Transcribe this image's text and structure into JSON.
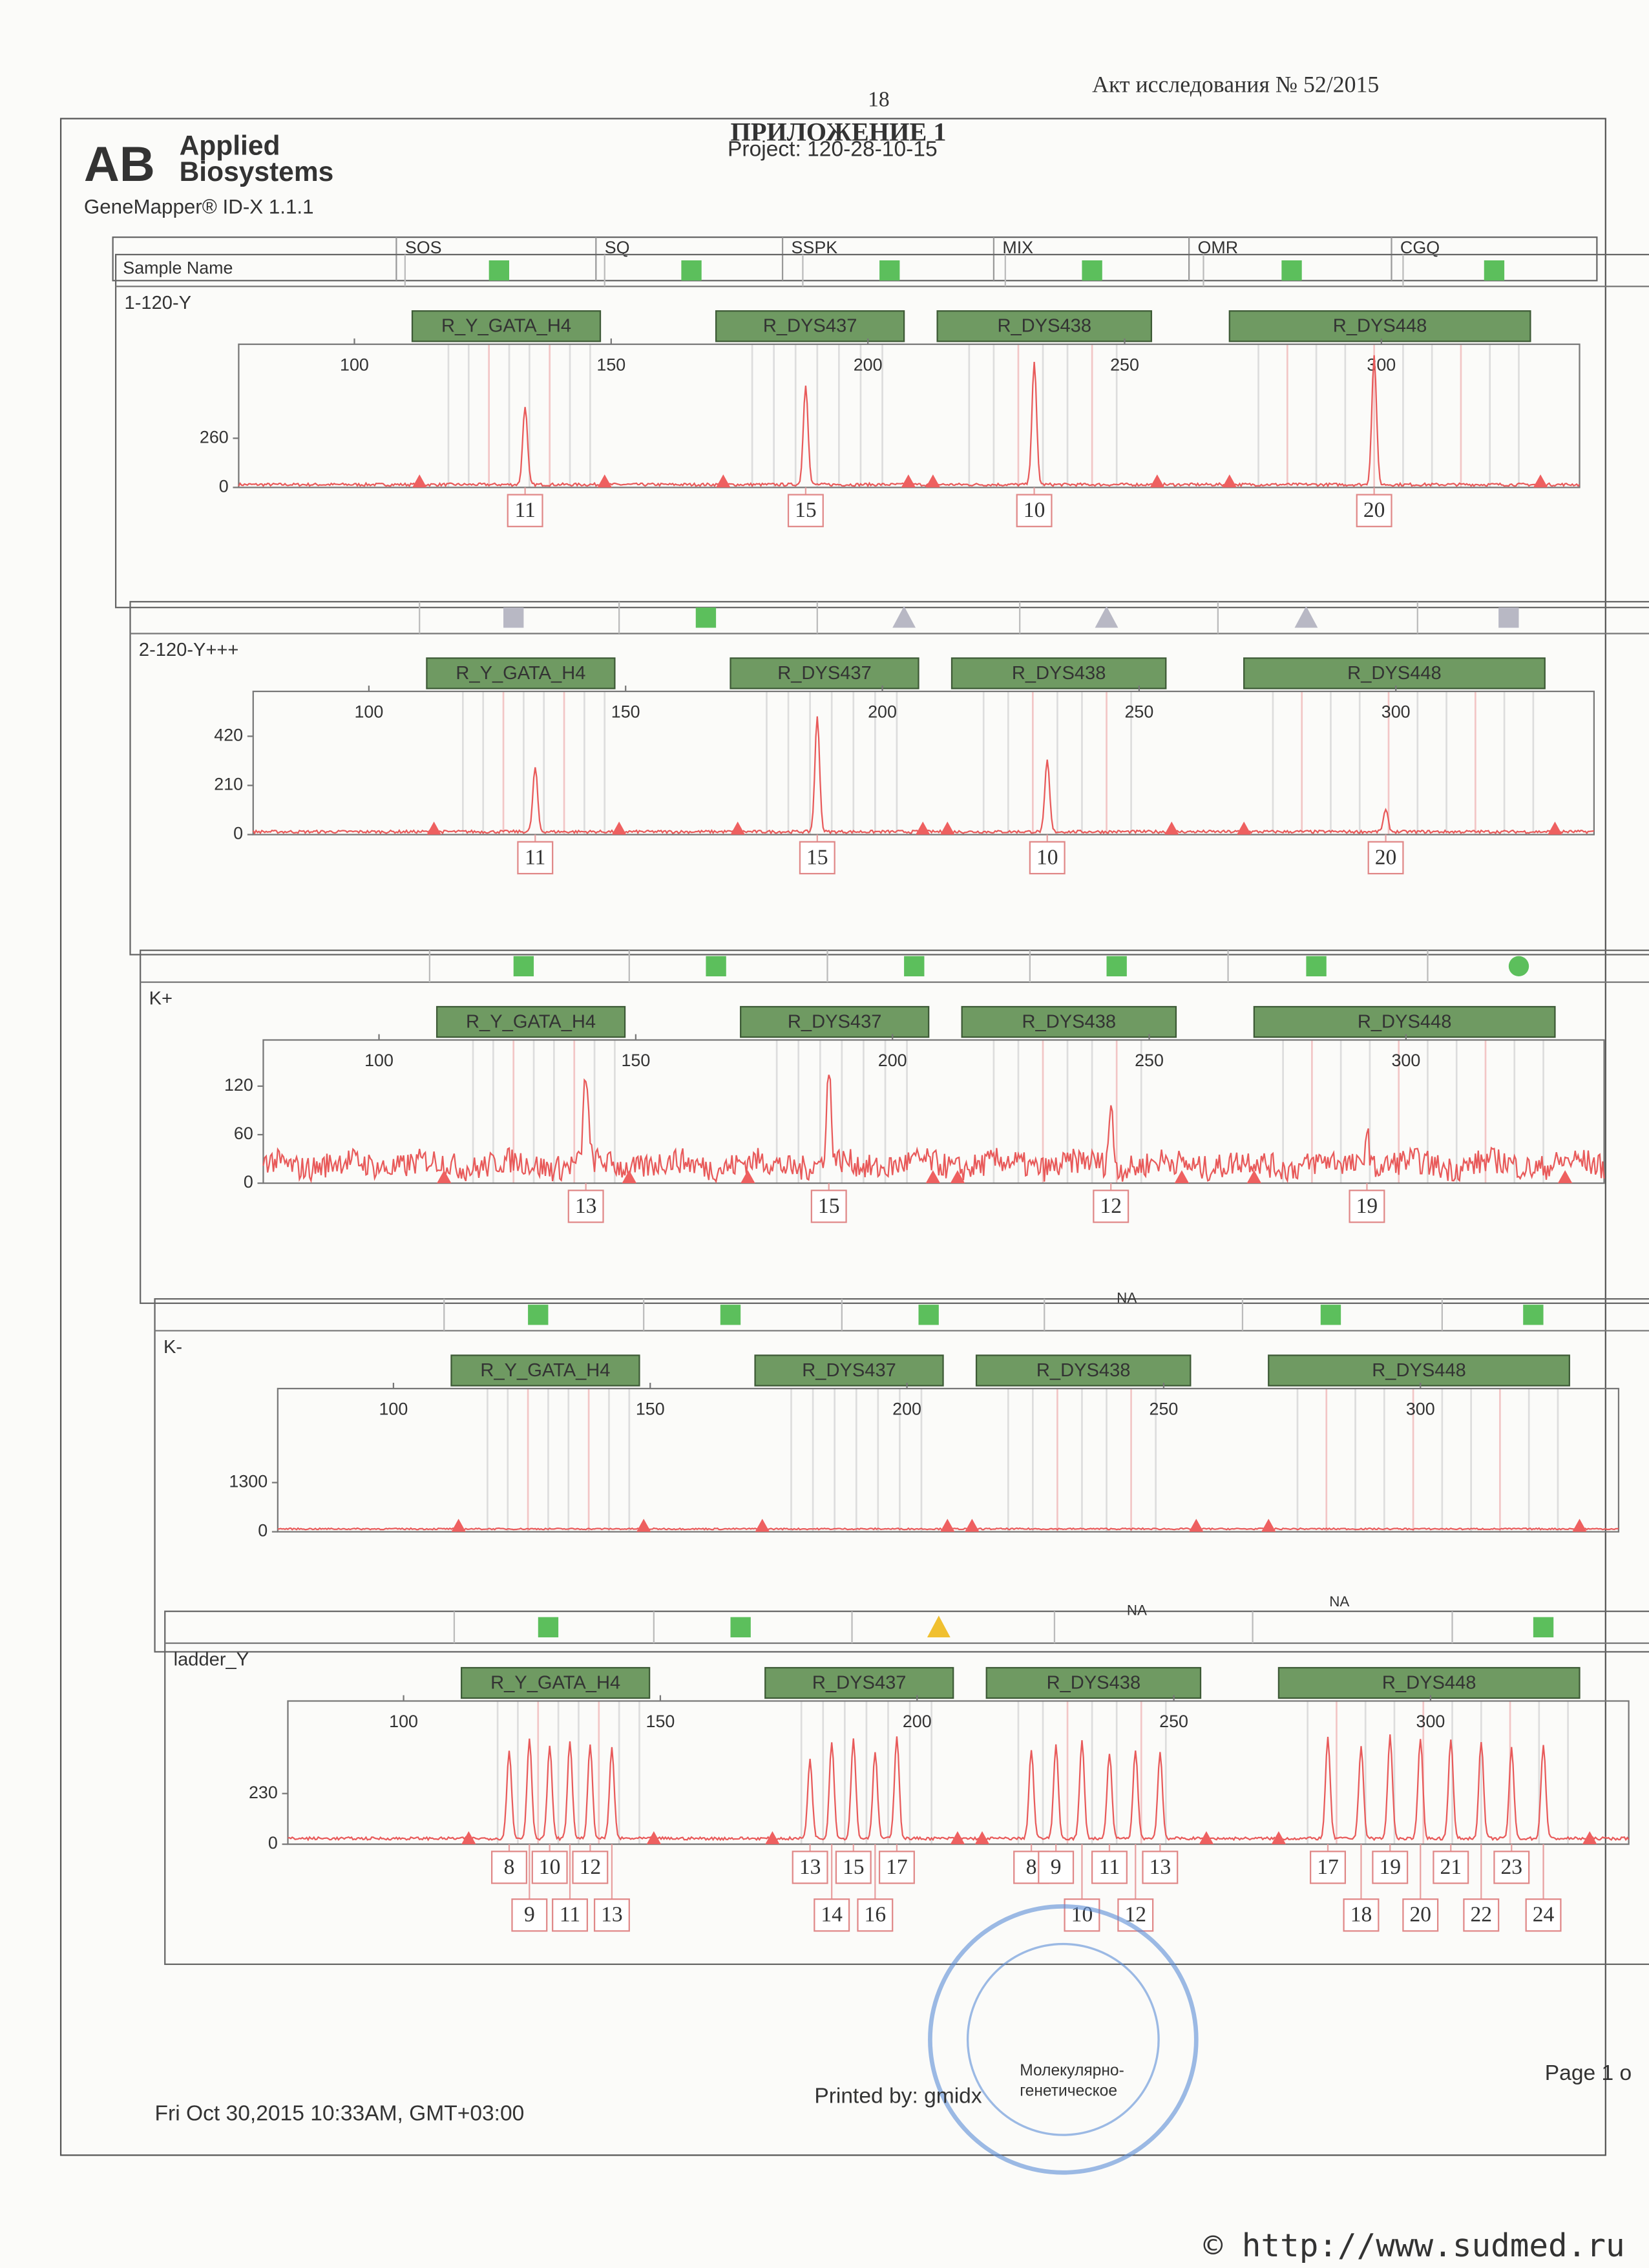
{
  "page_number": "18",
  "act_title": "Акт исследования № 52/2015",
  "appendix_title": "ПРИЛОЖЕНИЕ 1",
  "project": "Project: 120-28-10-15",
  "logo": {
    "mark": "AB",
    "line1": "Applied",
    "line2": "Biosystems"
  },
  "software": "GeneMapper® ID-X  1.1.1",
  "header_columns": [
    "Sample Name",
    "SOS",
    "SQ",
    "SSPK",
    "MIX",
    "OMR",
    "CGQ"
  ],
  "panels": [
    {
      "sample": "1-120-Y",
      "markers": [
        "R_Y_GATA_H4",
        "R_DYS437",
        "R_DYS438",
        "R_DYS448"
      ],
      "size_ticks": [
        100,
        150,
        200,
        250,
        300
      ],
      "rfu_ticks": [
        0,
        260
      ],
      "alleles": [
        "11",
        "15",
        "10",
        "20"
      ],
      "flags": []
    },
    {
      "sample": "2-120-Y+++",
      "markers": [
        "R_Y_GATA_H4",
        "R_DYS437",
        "R_DYS438",
        "R_DYS448"
      ],
      "size_ticks": [
        100,
        150,
        200,
        250,
        300
      ],
      "rfu_ticks": [
        0,
        210,
        420
      ],
      "alleles": [
        "11",
        "15",
        "10",
        "20"
      ],
      "flags": []
    },
    {
      "sample": "K+",
      "markers": [
        "R_Y_GATA_H4",
        "R_DYS437",
        "R_DYS438",
        "R_DYS448"
      ],
      "size_ticks": [
        100,
        150,
        200,
        250,
        300
      ],
      "rfu_ticks": [
        0,
        60,
        120
      ],
      "alleles": [
        "13",
        "15",
        "12",
        "19"
      ],
      "flags": []
    },
    {
      "sample": "K-",
      "markers": [
        "R_Y_GATA_H4",
        "R_DYS437",
        "R_DYS438",
        "R_DYS448"
      ],
      "size_ticks": [
        100,
        150,
        200,
        250,
        300
      ],
      "rfu_ticks": [
        0,
        1300
      ],
      "alleles": [],
      "flags": [
        "NA"
      ]
    },
    {
      "sample": "ladder_Y",
      "markers": [
        "R_Y_GATA_H4",
        "R_DYS437",
        "R_DYS438",
        "R_DYS448"
      ],
      "size_ticks": [
        100,
        150,
        200,
        250,
        300
      ],
      "rfu_ticks": [
        0,
        230
      ],
      "alleles": [
        "8",
        "9",
        "10",
        "11",
        "12",
        "13",
        "13",
        "14",
        "15",
        "16",
        "17",
        "8",
        "9",
        "10",
        "11",
        "12",
        "13",
        "17",
        "18",
        "19",
        "20",
        "21",
        "22",
        "23",
        "24"
      ],
      "flags": [
        "NA",
        "NA"
      ]
    }
  ],
  "footer": {
    "date": "Fri Oct 30,2015 10:33AM, GMT+03:00",
    "printed_by": "Printed by: gmidx",
    "page": "Page 1 o"
  },
  "stamp": [
    "Молекулярно-",
    "генетическое"
  ],
  "watermark": "© http://www.sudmed.ru"
}
